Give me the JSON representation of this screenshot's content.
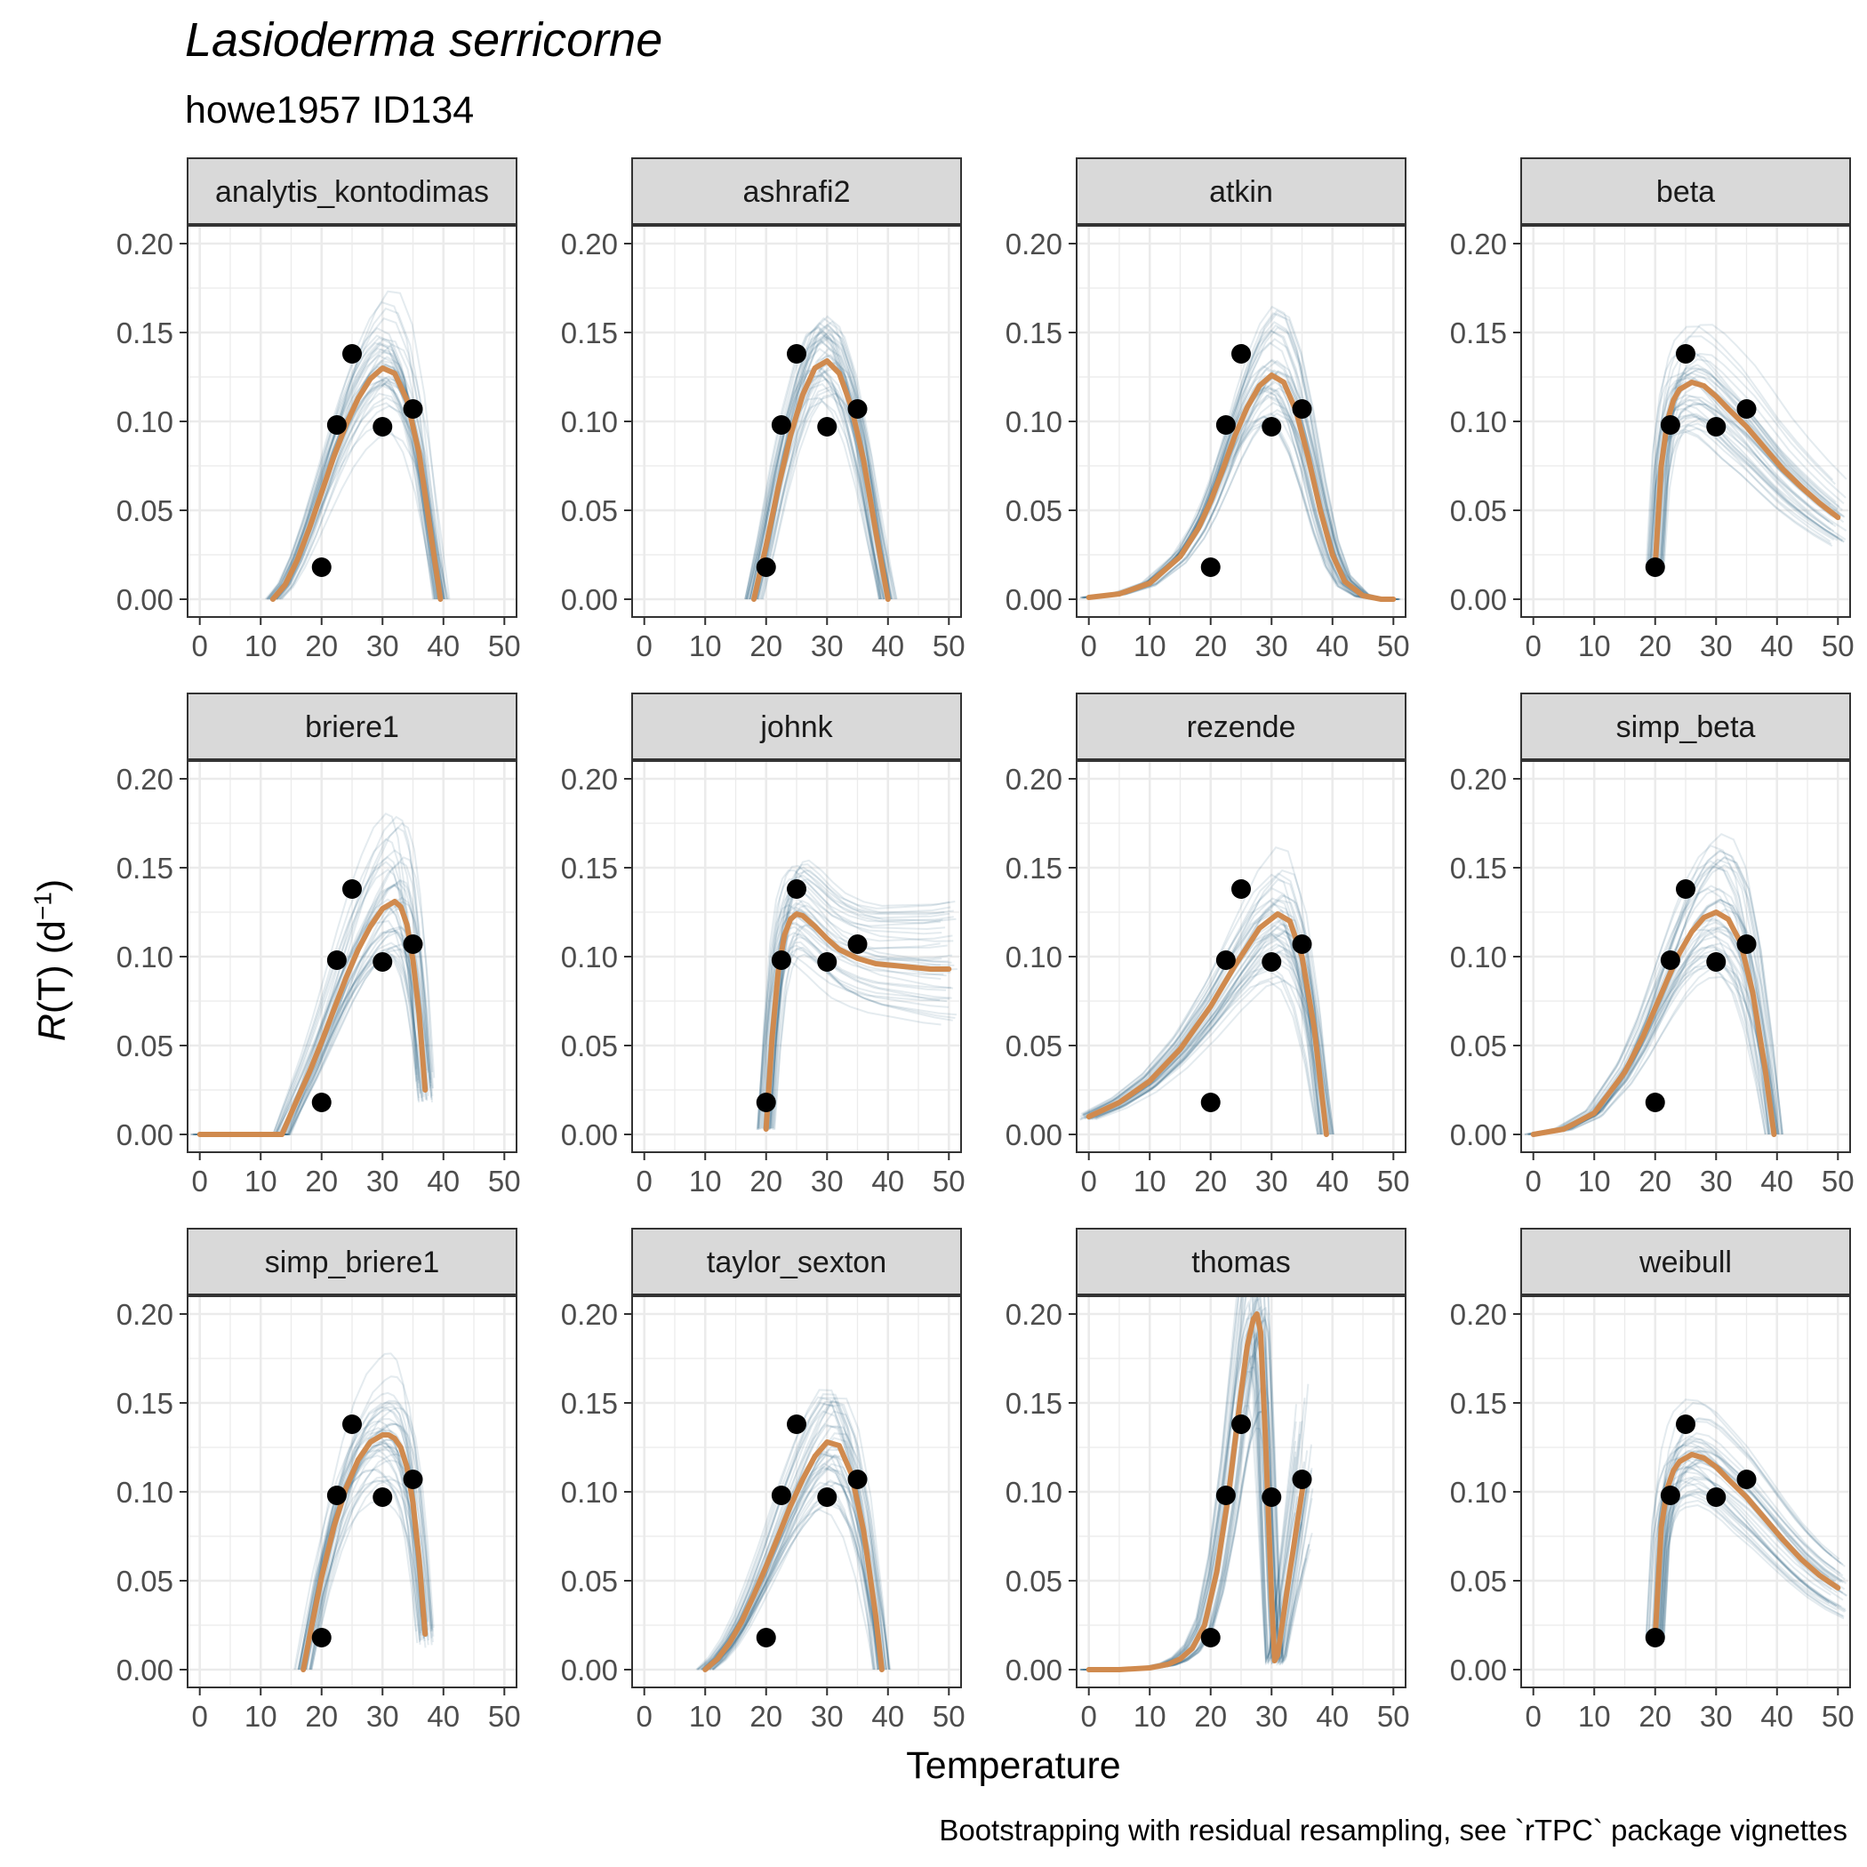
{
  "title": "Lasioderma serricorne",
  "subtitle": "howe1957 ID134",
  "xlabel": "Temperature",
  "ylabel": {
    "r": "R",
    "rest": "(T) (d",
    "sup": "−1",
    "close": ")"
  },
  "caption": "Bootstrapping with residual resampling, see `rTPC` package vignettes",
  "colors": {
    "fit": "#D08A4E",
    "boot": "#1F5A78",
    "points": "#000000",
    "strip": "#D9D9D9",
    "grid": "#EBEBEB"
  },
  "chart_data": {
    "type": "line",
    "facet_layout": {
      "rows": 3,
      "cols": 4
    },
    "x_ticks": [
      "0",
      "10",
      "20",
      "30",
      "40",
      "50"
    ],
    "y_ticks": [
      "0.00",
      "0.05",
      "0.10",
      "0.15",
      "0.20"
    ],
    "xlim": [
      -2,
      52
    ],
    "ylim": [
      -0.01,
      0.21
    ],
    "observed_points": {
      "x": [
        20,
        22.5,
        25,
        30,
        35
      ],
      "y": [
        0.018,
        0.098,
        0.138,
        0.097,
        0.107
      ]
    },
    "panels": [
      {
        "model": "analytis_kontodimas",
        "fit": {
          "x": [
            12,
            14,
            16,
            18,
            20,
            22,
            24,
            26,
            28,
            30,
            32,
            34,
            36,
            38,
            39.5
          ],
          "y": [
            0.0,
            0.008,
            0.022,
            0.04,
            0.06,
            0.08,
            0.098,
            0.113,
            0.124,
            0.13,
            0.127,
            0.112,
            0.082,
            0.035,
            0.0
          ]
        }
      },
      {
        "model": "ashrafi2",
        "fit": {
          "x": [
            18,
            20,
            22,
            24,
            26,
            28,
            30,
            32,
            34,
            36,
            38,
            40
          ],
          "y": [
            0.0,
            0.03,
            0.063,
            0.092,
            0.115,
            0.13,
            0.134,
            0.127,
            0.108,
            0.078,
            0.038,
            0.0
          ]
        }
      },
      {
        "model": "atkin",
        "fit": {
          "x": [
            0,
            5,
            10,
            15,
            18,
            20,
            22,
            24,
            26,
            28,
            30,
            32,
            34,
            36,
            38,
            40,
            42,
            45,
            48,
            50
          ],
          "y": [
            0.001,
            0.003,
            0.009,
            0.024,
            0.04,
            0.055,
            0.073,
            0.092,
            0.108,
            0.12,
            0.126,
            0.122,
            0.106,
            0.08,
            0.05,
            0.025,
            0.01,
            0.002,
            0.0,
            0.0
          ]
        }
      },
      {
        "model": "beta",
        "fit": {
          "x": [
            20,
            21,
            22,
            23,
            24,
            26,
            28,
            30,
            32,
            35,
            38,
            41,
            44,
            47,
            50
          ],
          "y": [
            0.018,
            0.075,
            0.1,
            0.112,
            0.118,
            0.122,
            0.12,
            0.114,
            0.107,
            0.097,
            0.085,
            0.073,
            0.063,
            0.054,
            0.046
          ]
        }
      },
      {
        "model": "briere1",
        "fit": {
          "x": [
            0,
            5,
            10,
            13.5,
            15,
            18,
            20,
            22,
            24,
            26,
            28,
            30,
            32,
            33,
            34,
            35,
            36,
            37
          ],
          "y": [
            0.0,
            0.0,
            0.0,
            0.0,
            0.012,
            0.035,
            0.052,
            0.07,
            0.088,
            0.104,
            0.117,
            0.127,
            0.131,
            0.128,
            0.118,
            0.098,
            0.068,
            0.025
          ]
        }
      },
      {
        "model": "johnk",
        "fit": {
          "x": [
            20,
            21,
            22,
            23,
            24,
            25,
            26,
            28,
            30,
            32,
            35,
            38,
            41,
            44,
            47,
            50
          ],
          "y": [
            0.003,
            0.055,
            0.092,
            0.112,
            0.121,
            0.124,
            0.123,
            0.117,
            0.11,
            0.104,
            0.099,
            0.096,
            0.095,
            0.094,
            0.093,
            0.093
          ]
        }
      },
      {
        "model": "rezende",
        "fit": {
          "x": [
            0,
            5,
            10,
            15,
            20,
            24,
            28,
            31,
            33,
            35,
            37,
            38,
            39
          ],
          "y": [
            0.01,
            0.018,
            0.03,
            0.048,
            0.072,
            0.095,
            0.116,
            0.124,
            0.12,
            0.1,
            0.06,
            0.03,
            0.0
          ]
        }
      },
      {
        "model": "simp_beta",
        "fit": {
          "x": [
            0,
            5,
            10,
            15,
            18,
            20,
            22,
            24,
            26,
            28,
            30,
            32,
            34,
            36,
            38,
            39.5
          ],
          "y": [
            0.0,
            0.003,
            0.012,
            0.035,
            0.055,
            0.071,
            0.087,
            0.102,
            0.114,
            0.122,
            0.125,
            0.121,
            0.108,
            0.08,
            0.038,
            0.0
          ]
        }
      },
      {
        "model": "simp_briere1",
        "fit": {
          "x": [
            17,
            18,
            20,
            22,
            24,
            26,
            28,
            30,
            31,
            32,
            33,
            34,
            35,
            36,
            37
          ],
          "y": [
            0.0,
            0.018,
            0.052,
            0.08,
            0.102,
            0.118,
            0.128,
            0.132,
            0.132,
            0.13,
            0.125,
            0.114,
            0.094,
            0.062,
            0.02
          ]
        }
      },
      {
        "model": "taylor_sexton",
        "fit": {
          "x": [
            10,
            12,
            14,
            16,
            18,
            20,
            22,
            24,
            26,
            28,
            30,
            32,
            34,
            36,
            38,
            39
          ],
          "y": [
            0.0,
            0.006,
            0.015,
            0.027,
            0.042,
            0.058,
            0.075,
            0.092,
            0.107,
            0.12,
            0.128,
            0.126,
            0.11,
            0.078,
            0.03,
            0.0
          ]
        }
      },
      {
        "model": "thomas",
        "fit": {
          "x": [
            0,
            5,
            10,
            13,
            15,
            17,
            19,
            21,
            23,
            24,
            25,
            26,
            27,
            27.6,
            28.2,
            29,
            30,
            30.5,
            31,
            33,
            35,
            35.3
          ],
          "y": [
            0.0,
            0.0,
            0.001,
            0.003,
            0.006,
            0.012,
            0.025,
            0.055,
            0.1,
            0.128,
            0.156,
            0.182,
            0.197,
            0.2,
            0.19,
            0.13,
            0.04,
            0.005,
            0.008,
            0.055,
            0.1,
            0.107
          ]
        }
      },
      {
        "model": "weibull",
        "fit": {
          "x": [
            20,
            21,
            22,
            23,
            24,
            26,
            28,
            30,
            32,
            35,
            38,
            41,
            44,
            47,
            50
          ],
          "y": [
            0.018,
            0.08,
            0.102,
            0.112,
            0.117,
            0.121,
            0.119,
            0.114,
            0.107,
            0.097,
            0.085,
            0.073,
            0.062,
            0.053,
            0.046
          ]
        }
      }
    ]
  }
}
